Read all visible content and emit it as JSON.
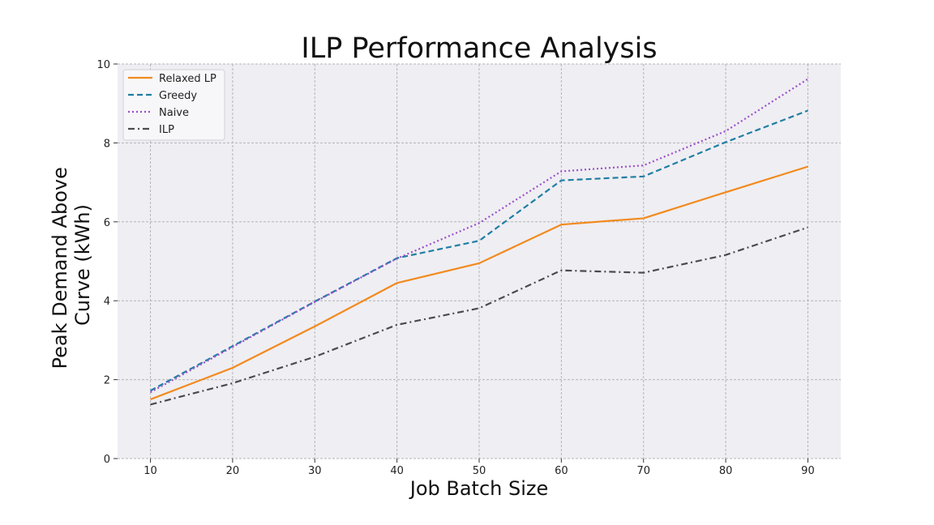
{
  "chart_data": {
    "type": "line",
    "title": "ILP Performance Analysis",
    "xlabel": "Job Batch Size",
    "ylabel_lines": [
      "Peak Demand Above",
      "Curve (kWh)"
    ],
    "x": [
      10,
      20,
      30,
      40,
      50,
      60,
      70,
      80,
      90
    ],
    "xlim": [
      6,
      94
    ],
    "ylim": [
      0,
      10
    ],
    "xticks": [
      10,
      20,
      30,
      40,
      50,
      60,
      70,
      80,
      90
    ],
    "yticks": [
      0,
      2,
      4,
      6,
      8,
      10
    ],
    "grid": true,
    "legend_position": "upper-left",
    "series": [
      {
        "name": "Relaxed LP",
        "color": "#f28a1c",
        "style": "solid",
        "values": [
          1.5,
          2.3,
          3.35,
          4.45,
          4.95,
          5.93,
          6.09,
          6.75,
          7.4
        ]
      },
      {
        "name": "Greedy",
        "color": "#1f7fa3",
        "style": "dashed",
        "values": [
          1.72,
          2.85,
          3.98,
          5.08,
          5.52,
          7.05,
          7.15,
          8.02,
          8.82
        ]
      },
      {
        "name": "Naive",
        "color": "#9b4fc9",
        "style": "dotted",
        "values": [
          1.68,
          2.83,
          3.97,
          5.07,
          5.97,
          7.28,
          7.43,
          8.3,
          9.62
        ]
      },
      {
        "name": "ILP",
        "color": "#4b4b4f",
        "style": "dashdot",
        "values": [
          1.37,
          1.91,
          2.58,
          3.39,
          3.81,
          4.77,
          4.71,
          5.16,
          5.86
        ]
      }
    ]
  }
}
